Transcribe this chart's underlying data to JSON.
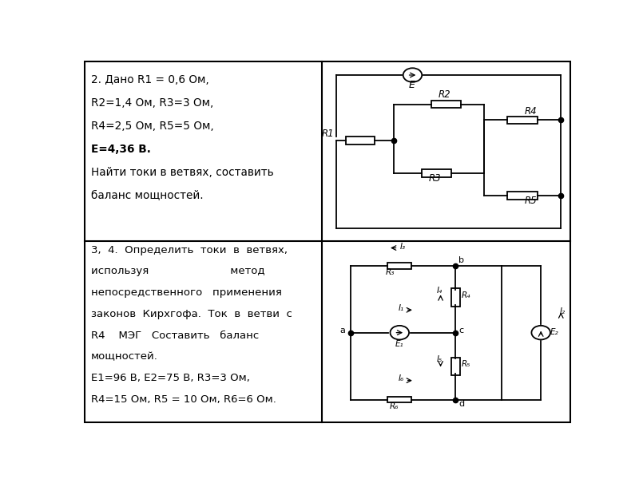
{
  "fig_width": 8.0,
  "fig_height": 6.0,
  "bg_color": "#ffffff",
  "gx": 0.488,
  "gy": 0.503,
  "cell1_text_lines": [
    "2. Дано R1 = 0,6 Ом,",
    "R2=1,4 Ом, R3=3 Ом,",
    "R4=2,5 Ом, R5=5 Ом,",
    "E=4,36 В.",
    "Найти токи в ветвях, составить",
    "баланс мощностей."
  ],
  "cell3_text_lines": [
    "3,  4.  Определить  токи  в  ветвях,",
    "используя                        метод",
    "непосредственного   применения",
    "законов  Кирхгофа.  Ток  в  ветви  с",
    "R4    МЭГ   Составить   баланс",
    "мощностей.",
    "E1=96 В, E2=75 В, R3=3 Ом,",
    "R4=15 Ом, R5 = 10 Ом, R6=6 Ом."
  ],
  "lw": 1.3
}
